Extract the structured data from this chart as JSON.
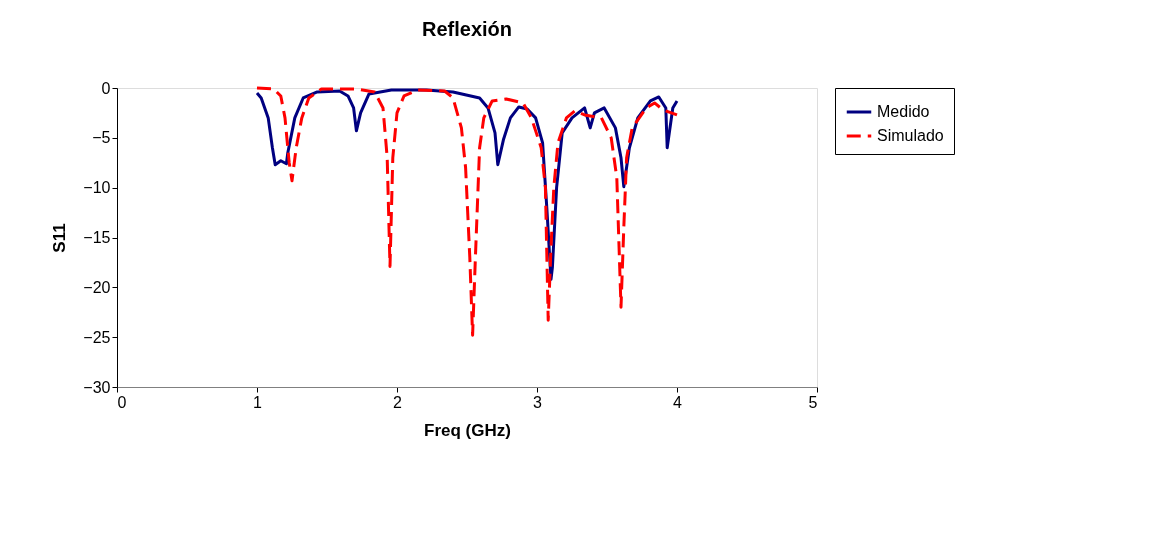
{
  "chart_data": {
    "type": "line",
    "title": "Reflexión",
    "xlabel": "Freq (GHz)",
    "ylabel": "S11",
    "xlim": [
      0,
      5
    ],
    "xticks": [
      0,
      1,
      2,
      3,
      4,
      5
    ],
    "ylim": [
      -30,
      0
    ],
    "yticks": [
      -30,
      -25,
      -20,
      -15,
      -10,
      -5,
      0
    ],
    "grid": false,
    "legend": "right",
    "marker": "none",
    "series": [
      {
        "name": "Medido",
        "color": "#000080",
        "line_style": "solid",
        "x": [
          1.0,
          1.03,
          1.08,
          1.11,
          1.13,
          1.17,
          1.21,
          1.22,
          1.27,
          1.33,
          1.43,
          1.59,
          1.65,
          1.69,
          1.71,
          1.74,
          1.8,
          1.96,
          2.21,
          2.4,
          2.59,
          2.65,
          2.7,
          2.72,
          2.76,
          2.81,
          2.87,
          2.93,
          2.99,
          3.04,
          3.07,
          3.1,
          3.11,
          3.14,
          3.18,
          3.25,
          3.34,
          3.38,
          3.41,
          3.48,
          3.56,
          3.6,
          3.62,
          3.66,
          3.72,
          3.81,
          3.87,
          3.92,
          3.93,
          3.97,
          4.0
        ],
        "values": [
          -0.5,
          -1,
          -3,
          -6,
          -7.7,
          -7.3,
          -7.6,
          -6.5,
          -3,
          -1,
          -0.4,
          -0.3,
          -0.8,
          -2,
          -4.3,
          -2.5,
          -0.6,
          -0.2,
          -0.2,
          -0.4,
          -1,
          -2,
          -4.5,
          -7.7,
          -5.2,
          -3,
          -1.9,
          -2.1,
          -3,
          -5.5,
          -12,
          -19.2,
          -18,
          -10,
          -4.5,
          -3,
          -2,
          -4,
          -2.5,
          -2,
          -4,
          -7,
          -9.9,
          -6,
          -3,
          -1.3,
          -0.9,
          -2,
          -6,
          -2,
          -1.3
        ]
      },
      {
        "name": "Simulado",
        "color": "#ff0000",
        "line_style": "dashed",
        "x": [
          1.0,
          1.12,
          1.17,
          1.2,
          1.23,
          1.25,
          1.28,
          1.32,
          1.37,
          1.46,
          1.71,
          1.84,
          1.9,
          1.93,
          1.95,
          1.97,
          2.0,
          2.05,
          2.15,
          2.34,
          2.4,
          2.46,
          2.49,
          2.52,
          2.54,
          2.56,
          2.59,
          2.62,
          2.68,
          2.78,
          2.9,
          2.96,
          3.03,
          3.06,
          3.08,
          3.1,
          3.12,
          3.15,
          3.21,
          3.27,
          3.34,
          3.46,
          3.53,
          3.57,
          3.6,
          3.62,
          3.64,
          3.68,
          3.78,
          3.84,
          3.9,
          4.0
        ],
        "values": [
          0,
          -0.1,
          -0.8,
          -3,
          -7.5,
          -9.3,
          -6,
          -3,
          -1,
          -0.1,
          -0.1,
          -0.4,
          -2,
          -7,
          -17.9,
          -7,
          -2.5,
          -0.8,
          -0.2,
          -0.3,
          -1,
          -4,
          -8,
          -17,
          -24.8,
          -17,
          -6,
          -3,
          -1.3,
          -1.1,
          -1.5,
          -3,
          -6,
          -10,
          -23.3,
          -16,
          -10,
          -5.5,
          -3,
          -2.3,
          -2.7,
          -3,
          -5,
          -9,
          -22,
          -14,
          -7,
          -4,
          -2,
          -1.5,
          -2.2,
          -2.7
        ]
      }
    ]
  }
}
